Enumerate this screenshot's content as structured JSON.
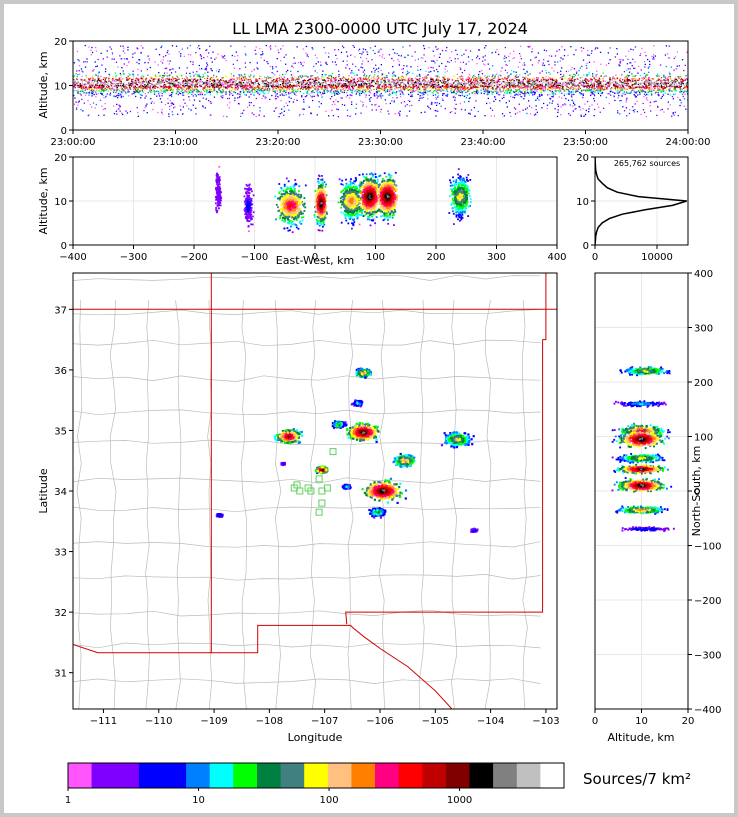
{
  "title": "LL LMA 2300-0000 UTC July 17, 2024",
  "sources_total": "265,762 sources",
  "colorbar_label": "Sources/7 km²",
  "colorbar_ticks": [
    "1",
    "10",
    "100",
    "1000"
  ],
  "colors": {
    "palette": [
      "#ff55ff",
      "#8000ff",
      "#8000ff",
      "#0000ff",
      "#0000ff",
      "#0080ff",
      "#00ffff",
      "#00ff00",
      "#008040",
      "#408080",
      "#ffff00",
      "#ffc080",
      "#ff8000",
      "#ff0080",
      "#ff0000",
      "#c00000",
      "#800000",
      "#000000",
      "#808080",
      "#c0c0c0",
      "#ffffff"
    ],
    "state_border": "#d00000",
    "county_border": "#bbbbbb"
  },
  "chart_data": [
    {
      "name": "time-altitude",
      "type": "heatmap",
      "xlabel": "",
      "ylabel": "Altitude, km",
      "x_ticks": [
        "23:00:00",
        "23:10:00",
        "23:20:00",
        "23:30:00",
        "23:40:00",
        "23:50:00",
        "24:00:00"
      ],
      "y_ticks": [
        "0",
        "10",
        "20"
      ],
      "ylim": [
        0,
        20
      ],
      "peak_altitude_km": 10
    },
    {
      "name": "eastwest-altitude",
      "type": "heatmap",
      "xlabel": "East-West, km",
      "ylabel": "Altitude, km",
      "x_ticks": [
        "−400",
        "−300",
        "−200",
        "−100",
        "0",
        "100",
        "200",
        "300",
        "400"
      ],
      "y_ticks": [
        "0",
        "10",
        "20"
      ],
      "xlim": [
        -400,
        400
      ],
      "ylim": [
        0,
        20
      ],
      "clusters": [
        {
          "x": -40,
          "alt": 9,
          "w": 30,
          "intensity": 0.8
        },
        {
          "x": 10,
          "alt": 9.5,
          "w": 12,
          "intensity": 1.0
        },
        {
          "x": 60,
          "alt": 10,
          "w": 25,
          "intensity": 0.7
        },
        {
          "x": 90,
          "alt": 11,
          "w": 22,
          "intensity": 1.0
        },
        {
          "x": 120,
          "alt": 11,
          "w": 22,
          "intensity": 1.0
        },
        {
          "x": 240,
          "alt": 11,
          "w": 22,
          "intensity": 0.6
        },
        {
          "x": -110,
          "alt": 9,
          "w": 10,
          "intensity": 0.2
        },
        {
          "x": -160,
          "alt": 12,
          "w": 8,
          "intensity": 0.15
        }
      ]
    },
    {
      "name": "altitude-histogram",
      "type": "line",
      "xlabel": "",
      "ylabel": "",
      "x_ticks": [
        "0",
        "10000"
      ],
      "y_ticks": [
        "0",
        "10",
        "20"
      ],
      "xlim": [
        0,
        15000
      ],
      "ylim": [
        0,
        20
      ],
      "altitude": [
        0,
        1,
        2,
        3,
        4,
        5,
        6,
        7,
        8,
        9,
        10,
        11,
        12,
        13,
        14,
        15,
        16,
        17,
        18,
        19,
        20
      ],
      "count": [
        0,
        60,
        120,
        260,
        520,
        1150,
        2300,
        4400,
        8100,
        12500,
        14800,
        7000,
        3600,
        2000,
        1200,
        500,
        260,
        120,
        60,
        30,
        10
      ]
    },
    {
      "name": "plan-view",
      "type": "heatmap",
      "xlabel": "Longitude",
      "ylabel": "Latitude",
      "x_ticks": [
        "−111",
        "−110",
        "−109",
        "−108",
        "−107",
        "−106",
        "−105",
        "−104",
        "−103"
      ],
      "y_ticks": [
        "31",
        "32",
        "33",
        "34",
        "35",
        "36",
        "37"
      ],
      "xlim": [
        -111.55,
        -102.8
      ],
      "ylim": [
        30.4,
        37.6
      ],
      "clusters": [
        {
          "lon": -107.65,
          "lat": 34.9,
          "r": 0.2,
          "intensity": 0.9
        },
        {
          "lon": -107.05,
          "lat": 34.35,
          "r": 0.09,
          "intensity": 1.0
        },
        {
          "lon": -106.3,
          "lat": 34.97,
          "r": 0.25,
          "intensity": 1.0
        },
        {
          "lon": -105.95,
          "lat": 34.0,
          "r": 0.3,
          "intensity": 1.0
        },
        {
          "lon": -106.3,
          "lat": 35.95,
          "r": 0.12,
          "intensity": 0.7
        },
        {
          "lon": -105.55,
          "lat": 34.5,
          "r": 0.17,
          "intensity": 0.7
        },
        {
          "lon": -104.6,
          "lat": 34.85,
          "r": 0.22,
          "intensity": 0.6
        },
        {
          "lon": -106.75,
          "lat": 35.1,
          "r": 0.1,
          "intensity": 0.5
        },
        {
          "lon": -106.4,
          "lat": 35.45,
          "r": 0.08,
          "intensity": 0.4
        },
        {
          "lon": -106.05,
          "lat": 33.65,
          "r": 0.12,
          "intensity": 0.5
        },
        {
          "lon": -106.6,
          "lat": 34.07,
          "r": 0.06,
          "intensity": 0.4
        },
        {
          "lon": -108.9,
          "lat": 33.6,
          "r": 0.05,
          "intensity": 0.25
        },
        {
          "lon": -104.3,
          "lat": 33.35,
          "r": 0.05,
          "intensity": 0.25
        },
        {
          "lon": -107.75,
          "lat": 34.45,
          "r": 0.03,
          "intensity": 0.2
        }
      ],
      "stations": [
        [
          -107.55,
          34.05
        ],
        [
          -107.45,
          34.0
        ],
        [
          -107.3,
          34.05
        ],
        [
          -107.1,
          34.2
        ],
        [
          -107.05,
          34.0
        ],
        [
          -106.95,
          34.05
        ],
        [
          -107.1,
          33.65
        ],
        [
          -107.05,
          33.8
        ],
        [
          -106.85,
          34.65
        ],
        [
          -107.25,
          34.0
        ],
        [
          -107.5,
          34.1
        ]
      ]
    },
    {
      "name": "altitude-northsouth",
      "type": "heatmap",
      "xlabel": "Altitude, km",
      "ylabel": "North-South, km",
      "x_ticks": [
        "0",
        "10",
        "20"
      ],
      "y_ticks": [
        "−400",
        "−300",
        "−200",
        "−100",
        "0",
        "100",
        "200",
        "300",
        "400"
      ],
      "xlim": [
        0,
        20
      ],
      "ylim": [
        -400,
        400
      ],
      "clusters": [
        {
          "ns": 220,
          "alt": 11,
          "h": 12,
          "intensity": 0.6
        },
        {
          "ns": 160,
          "alt": 10,
          "h": 8,
          "intensity": 0.35
        },
        {
          "ns": 110,
          "alt": 10,
          "h": 18,
          "intensity": 0.8
        },
        {
          "ns": 95,
          "alt": 10,
          "h": 25,
          "intensity": 1.0
        },
        {
          "ns": 60,
          "alt": 10,
          "h": 12,
          "intensity": 0.6
        },
        {
          "ns": 40,
          "alt": 10,
          "h": 12,
          "intensity": 1.0
        },
        {
          "ns": 10,
          "alt": 10,
          "h": 18,
          "intensity": 1.0
        },
        {
          "ns": -35,
          "alt": 10,
          "h": 10,
          "intensity": 0.7
        },
        {
          "ns": -70,
          "alt": 11,
          "h": 6,
          "intensity": 0.25
        }
      ]
    }
  ]
}
